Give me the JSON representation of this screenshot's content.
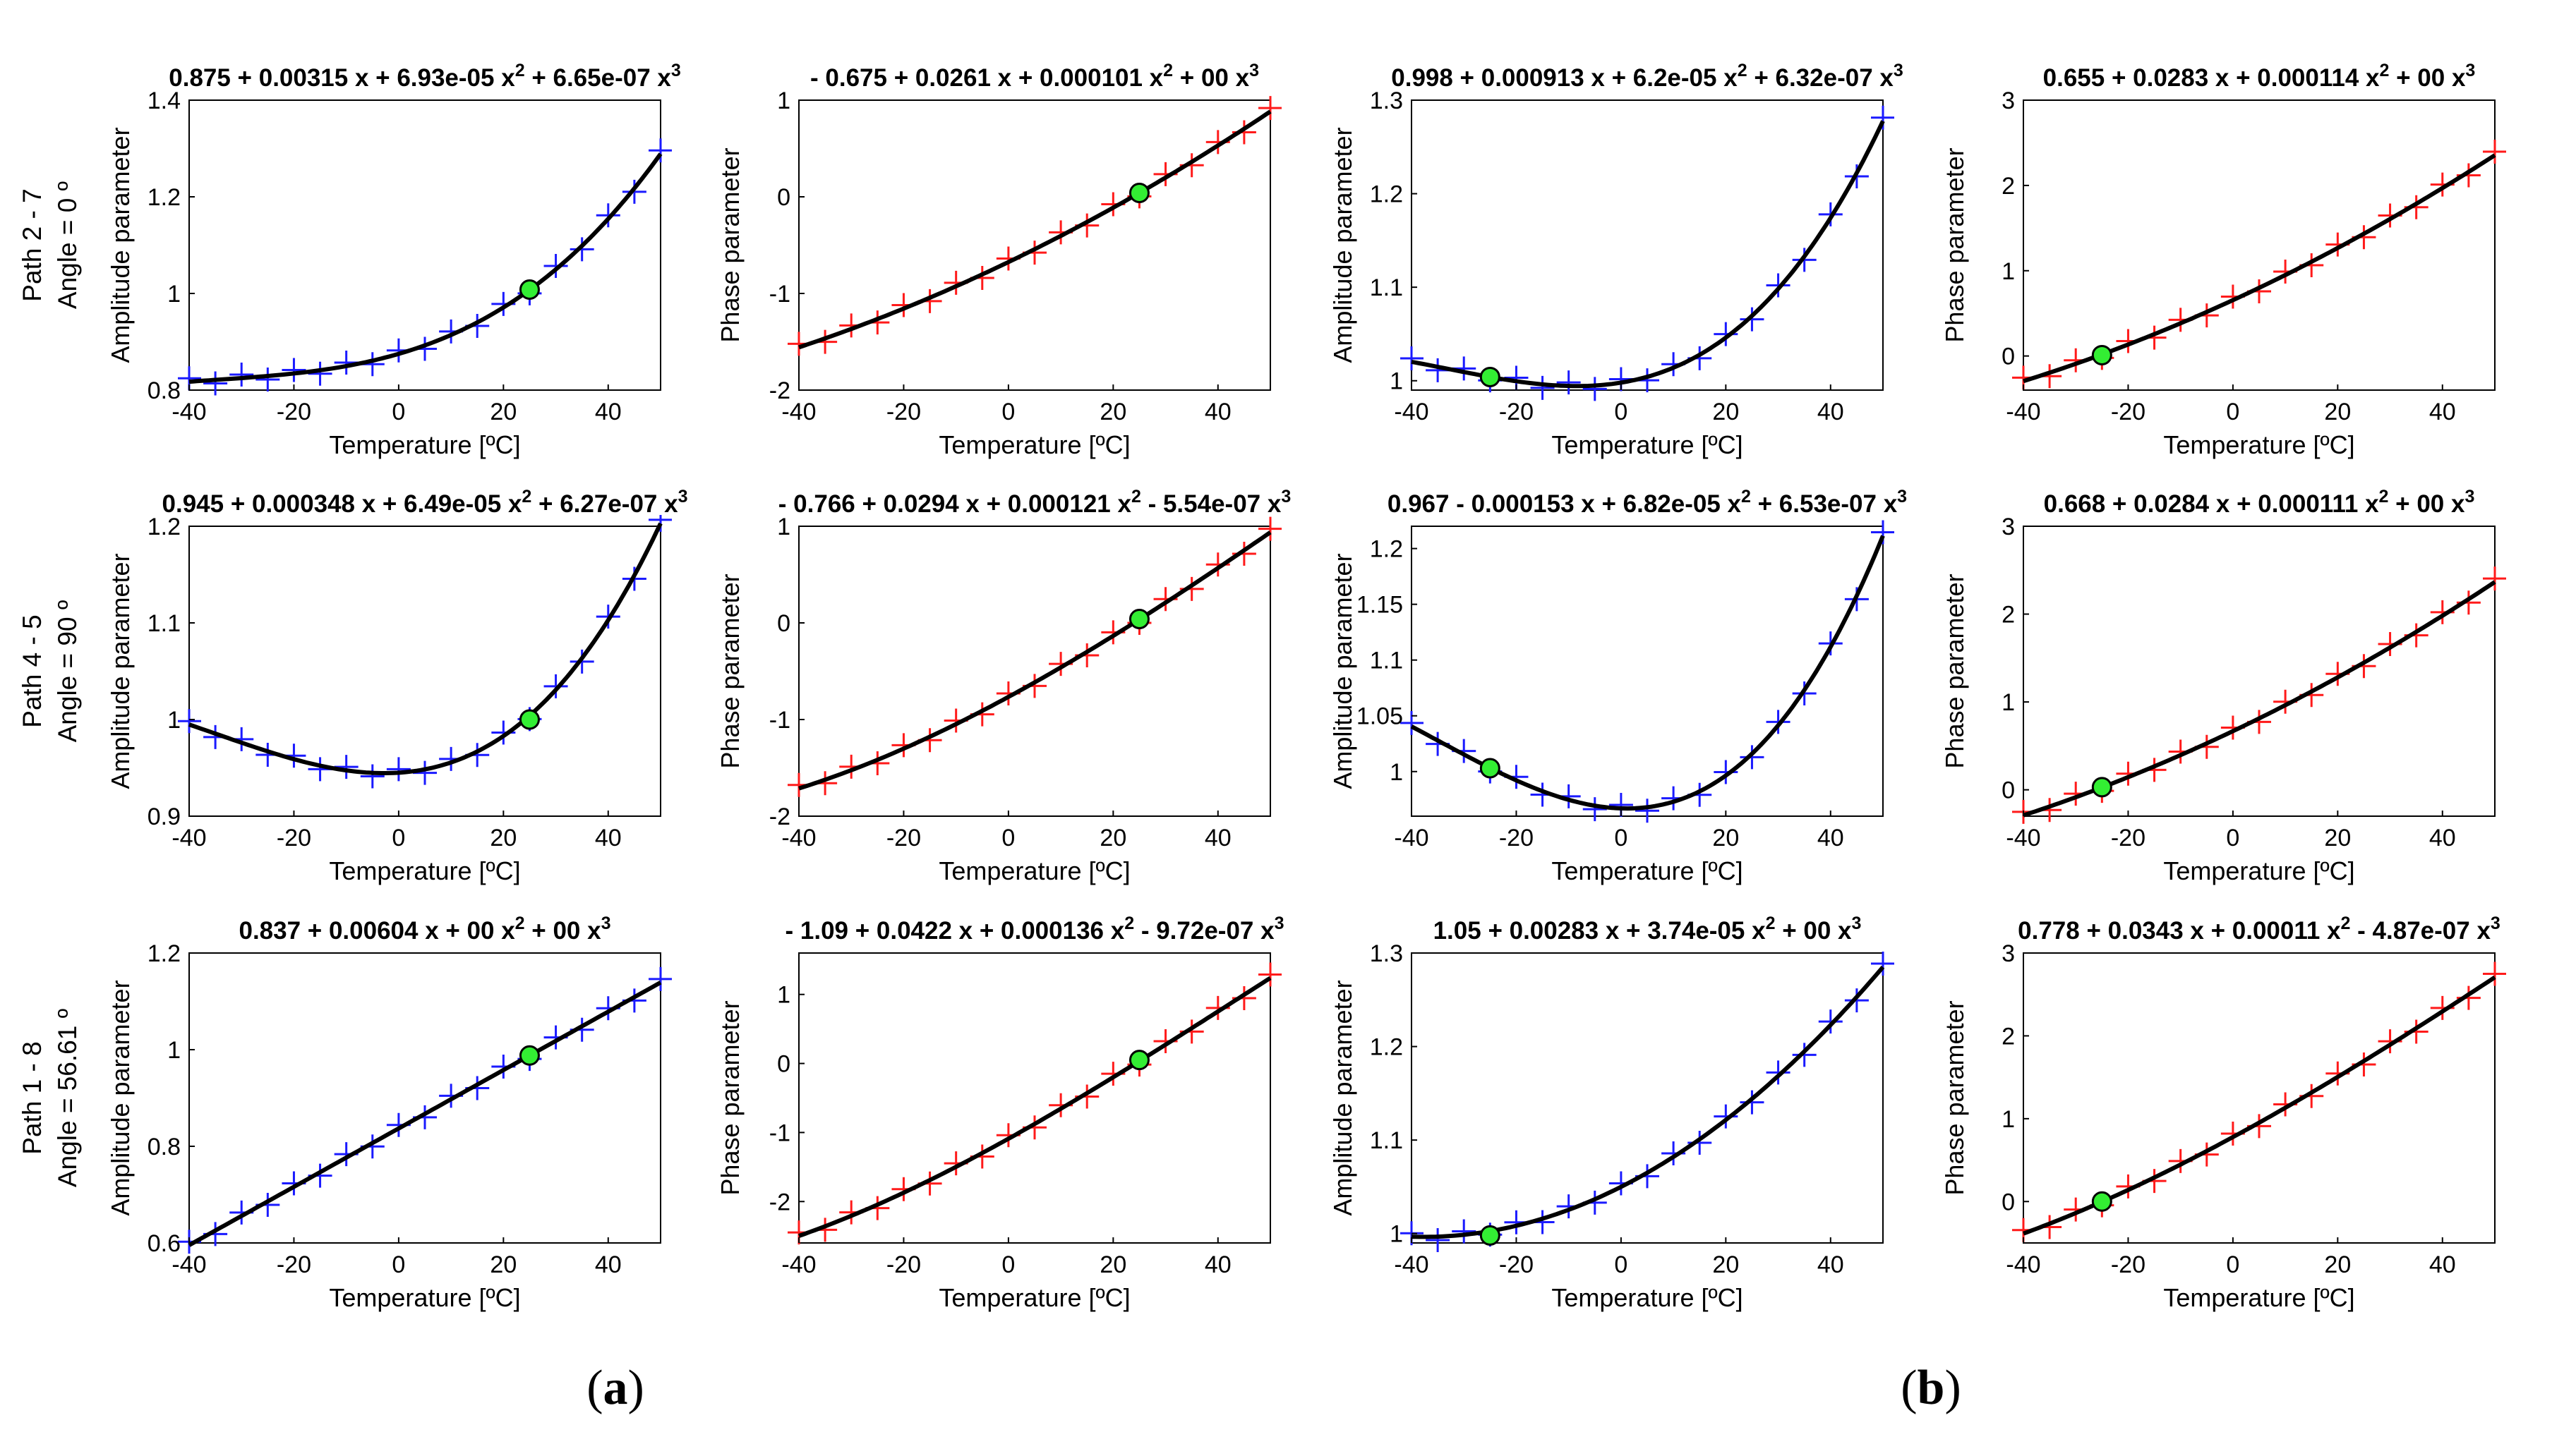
{
  "figure_labels": {
    "a": "a",
    "b": "b",
    "open": "(",
    "close": ")"
  },
  "row_labels": [
    {
      "path": "Path 2 - 7",
      "angle": "Angle = 0 º"
    },
    {
      "path": "Path 4 - 5",
      "angle": "Angle = 90 º"
    },
    {
      "path": "Path 1 - 8",
      "angle": "Angle = 56.61 º"
    }
  ],
  "colors": {
    "amplitude_marker": "#1a1aff",
    "phase_marker": "#ff1a1a",
    "fit_line": "#000000",
    "reference_point": "#33ee33"
  },
  "chart_data": [
    {
      "type": "scatter",
      "row": 0,
      "col": 0,
      "title": [
        "0.875 + 0.00315 x + 6.93e-05 x",
        "2",
        " + 6.65e-07 x",
        "3"
      ],
      "xlabel": "Temperature [ºC]",
      "ylabel": "Amplitude parameter",
      "xlim": [
        -40,
        50
      ],
      "ylim": [
        0.8,
        1.4
      ],
      "xticks": [
        -40,
        -20,
        0,
        20,
        40
      ],
      "yticks": [
        0.8,
        1,
        1.2,
        1.4
      ],
      "ytick_labels": [
        "0.8",
        "1",
        "1.2",
        "1.4"
      ],
      "coeffs": [
        0.875,
        0.00315,
        6.93e-05,
        6.65e-07
      ],
      "marker": "blue",
      "reference_point": [
        25,
        1.008
      ]
    },
    {
      "type": "scatter",
      "row": 0,
      "col": 1,
      "title": [
        "- 0.675 + 0.0261 x + 0.000101 x",
        "2",
        " + 00 x",
        "3"
      ],
      "xlabel": "Temperature [ºC]",
      "ylabel": "Phase parameter",
      "xlim": [
        -40,
        50
      ],
      "ylim": [
        -2,
        1
      ],
      "xticks": [
        -40,
        -20,
        0,
        20,
        40
      ],
      "yticks": [
        -2,
        -1,
        0,
        1
      ],
      "ytick_labels": [
        "-2",
        "-1",
        "0",
        "1"
      ],
      "coeffs": [
        -0.675,
        0.0261,
        0.000101,
        0
      ],
      "marker": "red",
      "reference_point": [
        25,
        0.04
      ]
    },
    {
      "type": "scatter",
      "row": 0,
      "col": 2,
      "title": [
        "0.998 + 0.000913 x + 6.2e-05 x",
        "2",
        " + 6.32e-07 x",
        "3"
      ],
      "xlabel": "Temperature [ºC]",
      "ylabel": "Amplitude parameter",
      "xlim": [
        -40,
        50
      ],
      "ylim": [
        0.99,
        1.3
      ],
      "xticks": [
        -40,
        -20,
        0,
        20,
        40
      ],
      "yticks": [
        1,
        1.1,
        1.2,
        1.3
      ],
      "ytick_labels": [
        "1",
        "1.1",
        "1.2",
        "1.3"
      ],
      "coeffs": [
        0.998,
        0.000913,
        6.2e-05,
        6.32e-07
      ],
      "marker": "blue",
      "reference_point": [
        -25,
        1.004
      ]
    },
    {
      "type": "scatter",
      "row": 0,
      "col": 3,
      "title": [
        "0.655 + 0.0283 x + 0.000114 x",
        "2",
        " + 00 x",
        "3"
      ],
      "xlabel": "Temperature [ºC]",
      "ylabel": "Phase parameter",
      "xlim": [
        -40,
        50
      ],
      "ylim": [
        -0.4,
        3
      ],
      "xticks": [
        -40,
        -20,
        0,
        20,
        40
      ],
      "yticks": [
        0,
        1,
        2,
        3
      ],
      "ytick_labels": [
        "0",
        "1",
        "2",
        "3"
      ],
      "coeffs": [
        0.655,
        0.0283,
        0.000114,
        0
      ],
      "marker": "red",
      "reference_point": [
        -25,
        0.01
      ]
    },
    {
      "type": "scatter",
      "row": 1,
      "col": 0,
      "title": [
        "0.945 + 0.000348 x + 6.49e-05 x",
        "2",
        " + 6.27e-07 x",
        "3"
      ],
      "xlabel": "Temperature [ºC]",
      "ylabel": "Amplitude parameter",
      "xlim": [
        -40,
        50
      ],
      "ylim": [
        0.9,
        1.2
      ],
      "xticks": [
        -40,
        -20,
        0,
        20,
        40
      ],
      "yticks": [
        0.9,
        1,
        1.1,
        1.2
      ],
      "ytick_labels": [
        "0.9",
        "1",
        "1.1",
        "1.2"
      ],
      "coeffs": [
        0.945,
        0.000348,
        6.49e-05,
        6.27e-07
      ],
      "marker": "blue",
      "reference_point": [
        25,
        1.0
      ]
    },
    {
      "type": "scatter",
      "row": 1,
      "col": 1,
      "title": [
        "- 0.766 + 0.0294 x + 0.000121 x",
        "2",
        " - 5.54e-07 x",
        "3"
      ],
      "xlabel": "Temperature [ºC]",
      "ylabel": "Phase parameter",
      "xlim": [
        -40,
        50
      ],
      "ylim": [
        -2,
        1
      ],
      "xticks": [
        -40,
        -20,
        0,
        20,
        40
      ],
      "yticks": [
        -2,
        -1,
        0,
        1
      ],
      "ytick_labels": [
        "-2",
        "-1",
        "0",
        "1"
      ],
      "coeffs": [
        -0.766,
        0.0294,
        0.000121,
        -5.54e-07
      ],
      "marker": "red",
      "reference_point": [
        25,
        0.04
      ]
    },
    {
      "type": "scatter",
      "row": 1,
      "col": 2,
      "title": [
        "0.967 - 0.000153 x + 6.82e-05 x",
        "2",
        " + 6.53e-07 x",
        "3"
      ],
      "xlabel": "Temperature [ºC]",
      "ylabel": "Amplitude parameter",
      "xlim": [
        -40,
        50
      ],
      "ylim": [
        0.96,
        1.22
      ],
      "xticks": [
        -40,
        -20,
        0,
        20,
        40
      ],
      "yticks": [
        1,
        1.05,
        1.1,
        1.15,
        1.2
      ],
      "ytick_labels": [
        "1",
        "1.05",
        "1.1",
        "1.15",
        "1.2"
      ],
      "coeffs": [
        0.967,
        -0.000153,
        6.82e-05,
        6.53e-07
      ],
      "marker": "blue",
      "reference_point": [
        -25,
        1.003
      ]
    },
    {
      "type": "scatter",
      "row": 1,
      "col": 3,
      "title": [
        "0.668 + 0.0284 x + 0.000111 x",
        "2",
        " + 00 x",
        "3"
      ],
      "xlabel": "Temperature [ºC]",
      "ylabel": "Phase parameter",
      "xlim": [
        -40,
        50
      ],
      "ylim": [
        -0.3,
        3
      ],
      "xticks": [
        -40,
        -20,
        0,
        20,
        40
      ],
      "yticks": [
        0,
        1,
        2,
        3
      ],
      "ytick_labels": [
        "0",
        "1",
        "2",
        "3"
      ],
      "coeffs": [
        0.668,
        0.0284,
        0.000111,
        0
      ],
      "marker": "red",
      "reference_point": [
        -25,
        0.03
      ]
    },
    {
      "type": "scatter",
      "row": 2,
      "col": 0,
      "title": [
        "0.837 + 0.00604 x + 00 x",
        "2",
        " + 00 x",
        "3"
      ],
      "xlabel": "Temperature [ºC]",
      "ylabel": "Amplitude parameter",
      "xlim": [
        -40,
        50
      ],
      "ylim": [
        0.6,
        1.2
      ],
      "xticks": [
        -40,
        -20,
        0,
        20,
        40
      ],
      "yticks": [
        0.6,
        0.8,
        1,
        1.2
      ],
      "ytick_labels": [
        "0.6",
        "0.8",
        "1",
        "1.2"
      ],
      "coeffs": [
        0.837,
        0.00604,
        0,
        0
      ],
      "marker": "blue",
      "reference_point": [
        25,
        0.988
      ]
    },
    {
      "type": "scatter",
      "row": 2,
      "col": 1,
      "title": [
        "- 1.09 + 0.0422 x + 0.000136 x",
        "2",
        " - 9.72e-07 x",
        "3"
      ],
      "xlabel": "Temperature [ºC]",
      "ylabel": "Phase parameter",
      "xlim": [
        -40,
        50
      ],
      "ylim": [
        -2.6,
        1.6
      ],
      "xticks": [
        -40,
        -20,
        0,
        20,
        40
      ],
      "yticks": [
        -2,
        -1,
        0,
        1
      ],
      "ytick_labels": [
        "-2",
        "-1",
        "0",
        "1"
      ],
      "coeffs": [
        -1.09,
        0.0422,
        0.000136,
        -9.72e-07
      ],
      "marker": "red",
      "reference_point": [
        25,
        0.05
      ]
    },
    {
      "type": "scatter",
      "row": 2,
      "col": 2,
      "title": [
        "1.05 + 0.00283 x + 3.74e-05 x",
        "2",
        " + 00 x",
        "3"
      ],
      "xlabel": "Temperature [ºC]",
      "ylabel": "Amplitude parameter",
      "xlim": [
        -40,
        50
      ],
      "ylim": [
        0.99,
        1.3
      ],
      "xticks": [
        -40,
        -20,
        0,
        20,
        40
      ],
      "yticks": [
        1,
        1.1,
        1.2,
        1.3
      ],
      "ytick_labels": [
        "1",
        "1.1",
        "1.2",
        "1.3"
      ],
      "coeffs": [
        1.05,
        0.00283,
        3.74e-05,
        0
      ],
      "marker": "blue",
      "reference_point": [
        -25,
        0.998
      ]
    },
    {
      "type": "scatter",
      "row": 2,
      "col": 3,
      "title": [
        "0.778 + 0.0343 x + 0.00011 x",
        "2",
        " - 4.87e-07 x",
        "3"
      ],
      "xlabel": "Temperature [ºC]",
      "ylabel": "Phase parameter",
      "xlim": [
        -40,
        50
      ],
      "ylim": [
        -0.5,
        3
      ],
      "xticks": [
        -40,
        -20,
        0,
        20,
        40
      ],
      "yticks": [
        0,
        1,
        2,
        3
      ],
      "ytick_labels": [
        "0",
        "1",
        "2",
        "3"
      ],
      "coeffs": [
        0.778,
        0.0343,
        0.00011,
        -4.87e-07
      ],
      "marker": "red",
      "reference_point": [
        -25,
        0.0
      ]
    }
  ]
}
